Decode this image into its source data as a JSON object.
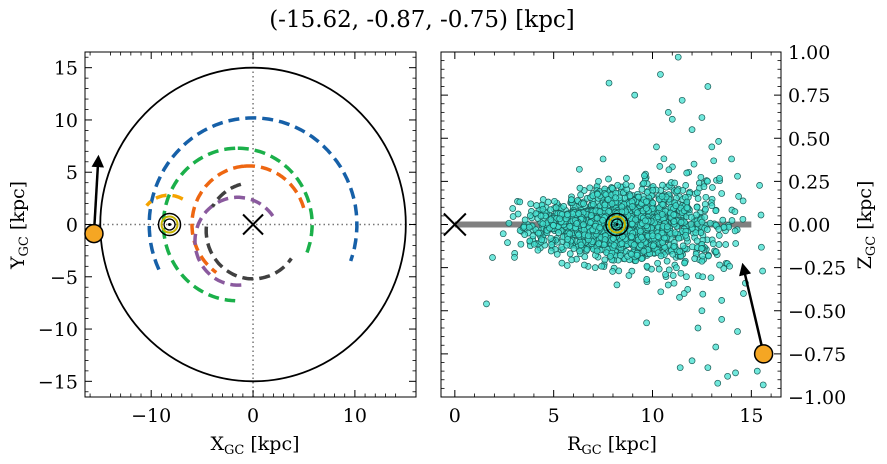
{
  "title": "(-15.62, -0.87, -0.75) [kpc]",
  "chart_data": [
    {
      "type": "line",
      "panel": "left",
      "xlabel": "X",
      "xlabel_sub": "GC",
      "xlabel_unit": "[kpc]",
      "ylabel": "Y",
      "ylabel_sub": "GC",
      "ylabel_unit": "[kpc]",
      "xlim": [
        -16.5,
        16.0
      ],
      "ylim": [
        -16.5,
        16.5
      ],
      "xticks": [
        -10,
        0,
        10
      ],
      "xtick_labels": [
        "−10",
        "0",
        "10"
      ],
      "yticks": [
        -15,
        -10,
        -5,
        0,
        5,
        10,
        15
      ],
      "ytick_labels": [
        "−15",
        "−10",
        "−5",
        "0",
        "5",
        "10",
        "15"
      ],
      "boundary_circle_radius": 15,
      "galactic_center": [
        0,
        0
      ],
      "sun_position": [
        -8.2,
        0
      ],
      "target_position": [
        -15.62,
        -0.87
      ],
      "velocity_arrow_tip": [
        -15.2,
        6.2
      ],
      "dotted_axes": true,
      "arms": [
        {
          "color": "#1660a8",
          "radius": 10.2,
          "center": [
            0,
            0
          ],
          "start_deg": 205,
          "end_deg": -20,
          "width": 3.5
        },
        {
          "color": "#1bb04a",
          "radius": 7.3,
          "center": [
            -1.5,
            0
          ],
          "start_deg": 92,
          "end_deg": 268,
          "width": 3.5
        },
        {
          "color": "#1bb04a",
          "radius": 7.3,
          "center": [
            -1.5,
            0
          ],
          "start_deg": 90,
          "end_deg": -25,
          "width": 3.5
        },
        {
          "color": "#ee6611",
          "radius": 5.6,
          "center": [
            -0.4,
            0
          ],
          "start_deg": 95,
          "end_deg": 235,
          "width": 3.5
        },
        {
          "color": "#ee6611",
          "radius": 5.6,
          "center": [
            -0.4,
            0
          ],
          "start_deg": 95,
          "end_deg": 15,
          "width": 3.5
        },
        {
          "color": "#f5a300",
          "radius": 2.8,
          "center": [
            -8.3,
            0
          ],
          "start_deg": 60,
          "end_deg": 140,
          "width": 3.5
        },
        {
          "color": "#8a5a9e",
          "radius": 4.2,
          "center": [
            -1.5,
            -1.6
          ],
          "start_deg": 35,
          "end_deg": 280,
          "width": 3.5
        },
        {
          "color": "#404040",
          "radius": 4.6,
          "center": [
            0,
            -0.6
          ],
          "start_deg": 175,
          "end_deg": 325,
          "width": 3.5
        },
        {
          "color": "#404040",
          "radius": 4.6,
          "center": [
            0,
            -0.6
          ],
          "start_deg": 105,
          "end_deg": 150,
          "width": 3.5
        }
      ]
    },
    {
      "type": "scatter",
      "panel": "right",
      "xlabel": "R",
      "xlabel_sub": "GC",
      "xlabel_unit": "[kpc]",
      "ylabel": "Z",
      "ylabel_sub": "GC",
      "ylabel_unit": "[kpc]",
      "xlim": [
        -0.7,
        16.5
      ],
      "ylim": [
        -1.0,
        1.0
      ],
      "xticks": [
        0,
        5,
        10,
        15
      ],
      "xtick_labels": [
        "0",
        "5",
        "10",
        "15"
      ],
      "yticks": [
        -1.0,
        -0.75,
        -0.5,
        -0.25,
        0.0,
        0.25,
        0.5,
        0.75,
        1.0
      ],
      "ytick_labels": [
        "−1.00",
        "−0.75",
        "−0.50",
        "−0.25",
        "0.00",
        "0.25",
        "0.50",
        "0.75",
        "1.00"
      ],
      "point_color": "#40e0d0",
      "point_edge": "#1a5a55",
      "disk_line": {
        "x": [
          0,
          15
        ],
        "y": 0,
        "color": "#808080"
      },
      "galactic_center": [
        0,
        0
      ],
      "sun_position": [
        8.2,
        0
      ],
      "target_position": [
        15.62,
        -0.75
      ],
      "velocity_arrow_tip": [
        14.6,
        -0.25
      ],
      "scatter_cloud": {
        "n": 1800,
        "center_r": 8.4,
        "r_spread": 2.3,
        "z_spread": 0.13,
        "r_min": 1.5,
        "r_max": 15.6,
        "seed": 7
      },
      "outliers": [
        [
          7.8,
          0.82
        ],
        [
          10.4,
          0.87
        ],
        [
          11.3,
          0.97
        ],
        [
          12.5,
          0.62
        ],
        [
          12.0,
          0.55
        ],
        [
          9.1,
          0.75
        ],
        [
          11.5,
          0.72
        ],
        [
          10.2,
          0.45
        ],
        [
          13.0,
          0.45
        ],
        [
          14.0,
          0.38
        ],
        [
          14.3,
          0.28
        ],
        [
          13.5,
          0.18
        ],
        [
          12.8,
          0.8
        ],
        [
          11.0,
          0.61
        ],
        [
          1.6,
          -0.46
        ],
        [
          12.3,
          -0.6
        ],
        [
          13.5,
          -0.55
        ],
        [
          14.3,
          -0.62
        ],
        [
          13.8,
          -0.88
        ],
        [
          14.2,
          -0.86
        ],
        [
          15.3,
          -0.85
        ],
        [
          15.6,
          -0.93
        ],
        [
          12.8,
          -0.83
        ],
        [
          15.4,
          -0.72
        ],
        [
          13.3,
          -0.92
        ],
        [
          12.0,
          -0.79
        ],
        [
          9.7,
          -0.57
        ],
        [
          13.2,
          -0.71
        ],
        [
          11.4,
          -0.83
        ],
        [
          7.5,
          0.38
        ],
        [
          6.3,
          0.32
        ],
        [
          10.8,
          0.65
        ],
        [
          12.1,
          0.35
        ],
        [
          13.2,
          0.08
        ],
        [
          14.7,
          -0.34
        ],
        [
          14.6,
          -0.4
        ],
        [
          12.5,
          -0.5
        ],
        [
          13.5,
          -0.44
        ],
        [
          11.6,
          -0.4
        ],
        [
          8.2,
          -0.35
        ]
      ]
    }
  ]
}
